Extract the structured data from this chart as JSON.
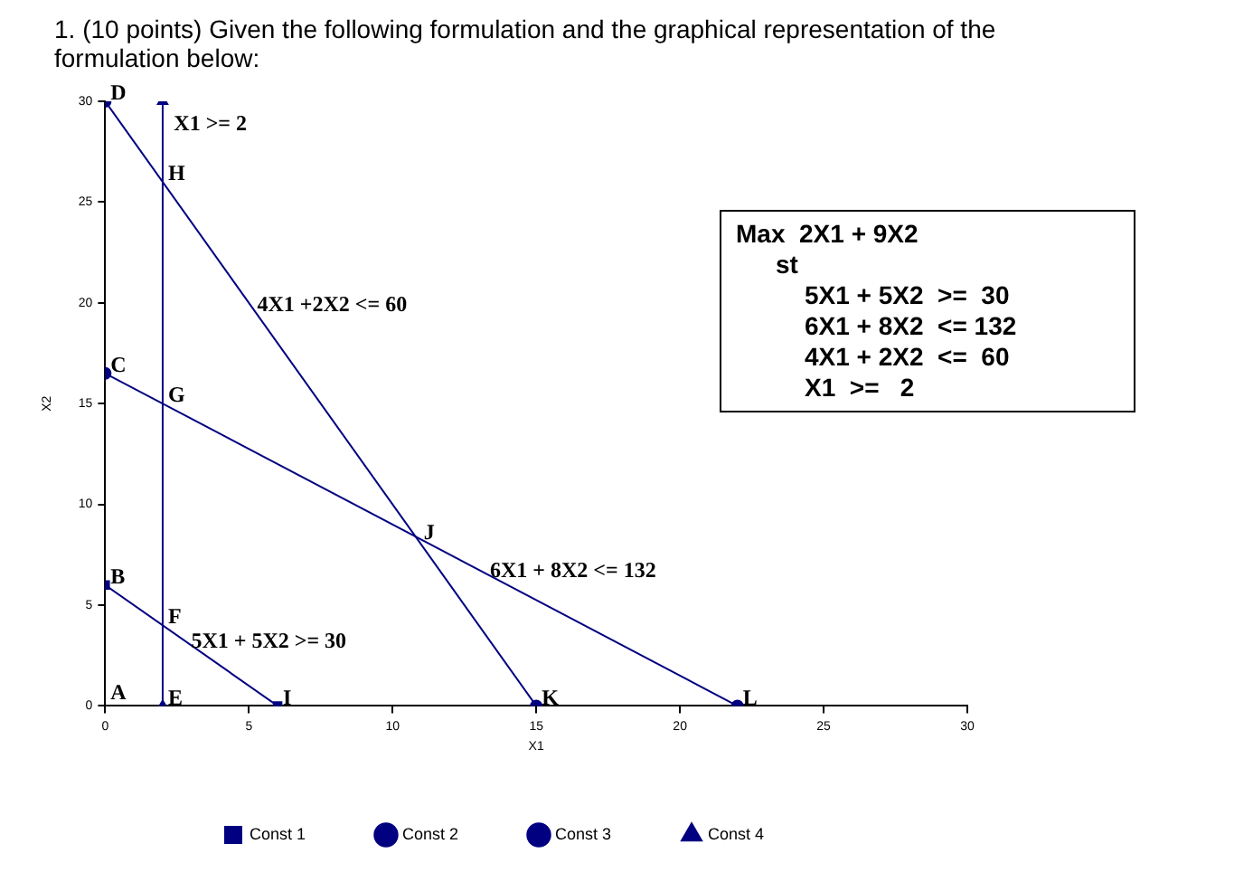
{
  "chart_data": {
    "type": "line",
    "title": "1. (10 points) Given the following formulation and the graphical representation of the formulation below:",
    "xlabel": "X1",
    "ylabel": "X2",
    "xlim": [
      0,
      30
    ],
    "xticks": [
      0,
      5,
      10,
      15,
      20,
      25,
      30
    ],
    "ylim": [
      0,
      30
    ],
    "yticks": [
      0,
      5,
      10,
      15,
      20,
      25,
      30
    ],
    "grid": false,
    "legend": "bottom",
    "line_style": "solid",
    "series": [
      {
        "name": "Const 1",
        "color": "#000080",
        "marker": "square",
        "x": [
          0,
          6
        ],
        "values": [
          6,
          0
        ]
      },
      {
        "name": "Const 2",
        "color": "#000080",
        "marker": "circle",
        "x": [
          0,
          15
        ],
        "values": [
          30,
          0
        ]
      },
      {
        "name": "Const 3",
        "color": "#000080",
        "marker": "circle",
        "x": [
          0,
          22
        ],
        "values": [
          16.5,
          0
        ]
      },
      {
        "name": "Const 4",
        "color": "#000080",
        "marker": "triangle",
        "x": [
          2,
          2
        ],
        "values": [
          0,
          30
        ]
      }
    ],
    "annotations": [
      "A",
      {
        "text": "B",
        "x": 0,
        "y": 6
      },
      {
        "text": "C",
        "x": 0,
        "y": 16.5
      },
      {
        "text": "D",
        "x": 0,
        "y": 30
      },
      {
        "text": "E",
        "x": 2,
        "y": 0
      },
      {
        "text": "F",
        "x": 2,
        "y": 4
      },
      {
        "text": "G",
        "x": 2,
        "y": 15
      },
      {
        "text": "H",
        "x": 2,
        "y": 26
      },
      {
        "text": "I",
        "x": 6,
        "y": 0
      },
      {
        "text": "J",
        "x": 10.9,
        "y": 8.2
      },
      {
        "text": "K",
        "x": 15,
        "y": 0
      },
      {
        "text": "L",
        "x": 22,
        "y": 0
      },
      {
        "text": "X1 >= 2",
        "x": 2.2,
        "y": 28.5
      },
      {
        "text": "4X1 +2X2 <= 60",
        "x": 5.1,
        "y": 19.5
      },
      {
        "text": "6X1 + 8X2 <= 132",
        "x": 13.2,
        "y": 6.3
      },
      {
        "text": "5X1 + 5X2 >= 30",
        "x": 2.8,
        "y": 2.8
      },
      "Max  2X1 + 9X2",
      "st",
      "5X1 + 5X2  >=  30",
      "6X1 + 8X2  <= 132",
      "4X1 + 2X2  <=  60",
      "X1  >=   2"
    ]
  }
}
